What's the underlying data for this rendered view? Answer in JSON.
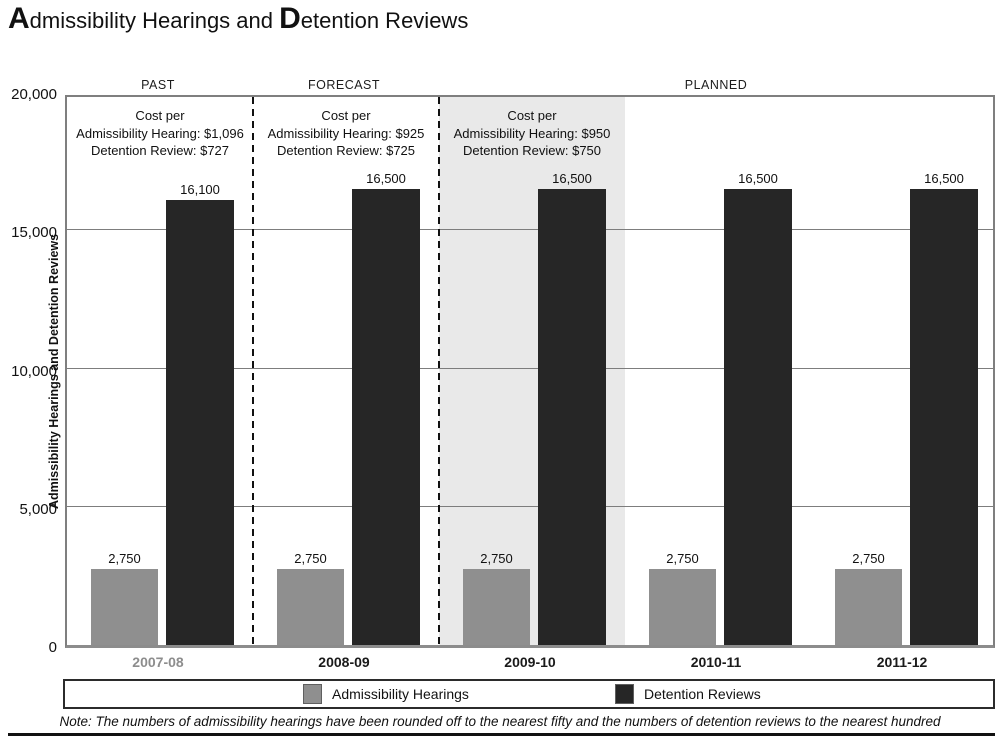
{
  "title": {
    "text": "Admissibility Hearings and Detention Reviews",
    "segments": [
      {
        "t": "A",
        "big": true
      },
      {
        "t": "dmissibility Hearings and ",
        "big": false
      },
      {
        "t": "D",
        "big": true
      },
      {
        "t": "etention Reviews",
        "big": false
      }
    ]
  },
  "sections": [
    {
      "label": "PAST",
      "slots": [
        0,
        0
      ],
      "cost_slot": 0,
      "cost_lines": [
        "Cost per",
        "Admissibility Hearing: $1,096",
        "Detention Review: $727"
      ]
    },
    {
      "label": "FORECAST",
      "slots": [
        1,
        1
      ],
      "cost_slot": 1,
      "cost_lines": [
        "Cost per",
        "Admissibility Hearing: $925",
        "Detention Review: $725"
      ]
    },
    {
      "label": "PLANNED",
      "slots": [
        2,
        4
      ],
      "cost_slot": 2,
      "cost_lines": [
        "Cost per",
        "Admissibility Hearing: $950",
        "Detention Review: $750"
      ]
    }
  ],
  "chart_data": {
    "type": "bar",
    "title": "Admissibility Hearings and Detention Reviews",
    "ylabel": "Admissibility Hearings and Detention Reviews",
    "xlabel": "",
    "ylim": [
      0,
      20000
    ],
    "yticks": [
      {
        "value": 0,
        "label": "0"
      },
      {
        "value": 5000,
        "label": "5,000"
      },
      {
        "value": 10000,
        "label": "10,000"
      },
      {
        "value": 15000,
        "label": "15,000"
      },
      {
        "value": 20000,
        "label": "20,000"
      }
    ],
    "grid_values": [
      5000,
      10000,
      15000
    ],
    "categories": [
      "2007-08",
      "2008-09",
      "2009-10",
      "2010-11",
      "2011-12"
    ],
    "muted_category_index": 0,
    "highlight_category_index": 2,
    "series": [
      {
        "name": "Admissibility Hearings",
        "color": "#8f8f8f",
        "values": [
          2750,
          2750,
          2750,
          2750,
          2750
        ],
        "labels": [
          "2,750",
          "2,750",
          "2,750",
          "2,750",
          "2,750"
        ]
      },
      {
        "name": "Detention Reviews",
        "color": "#262626",
        "values": [
          16100,
          16500,
          16500,
          16500,
          16500
        ],
        "labels": [
          "16,100",
          "16,500",
          "16,500",
          "16,500",
          "16,500"
        ]
      }
    ],
    "legend_position": "bottom"
  },
  "legend": {
    "items": [
      {
        "label": "Admissibility Hearings",
        "color": "#8f8f8f"
      },
      {
        "label": "Detention Reviews",
        "color": "#262626"
      }
    ]
  },
  "note": "Note: The numbers of admissibility hearings have been rounded off to the nearest fifty and the numbers of detention reviews to the nearest hundred",
  "colors": {
    "highlight_band": "#e9e9e9",
    "muted_label": "#8d8d8d",
    "frame": "#7f7f7f",
    "gridline": "#7d7d7d",
    "dashed_divider": "#111111"
  }
}
